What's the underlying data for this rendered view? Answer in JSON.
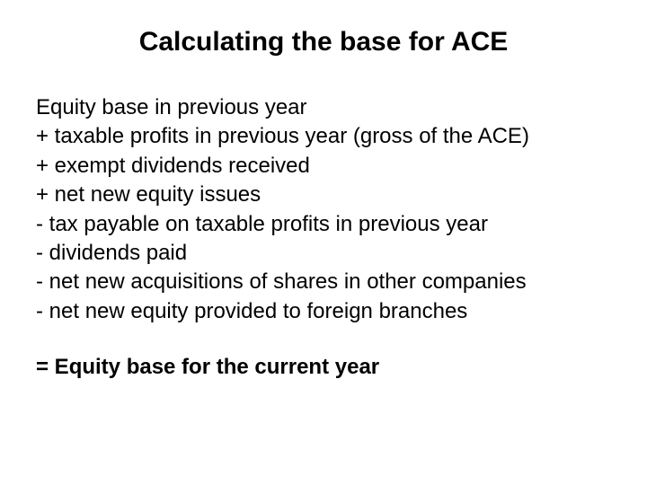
{
  "title": "Calculating the base for ACE",
  "lines": [
    "Equity base in previous year",
    "+ taxable profits in previous year (gross of the ACE)",
    "+ exempt dividends received",
    "+ net new equity issues",
    "-  tax payable on taxable profits in previous year",
    "-  dividends paid",
    "-  net new acquisitions of shares in other companies",
    "-  net new equity provided to foreign branches"
  ],
  "result": "= Equity base for the current year",
  "colors": {
    "background": "#ffffff",
    "text": "#000000"
  },
  "typography": {
    "title_fontsize": 30,
    "title_weight": "bold",
    "body_fontsize": 24,
    "result_weight": "bold",
    "font_family": "Arial"
  }
}
